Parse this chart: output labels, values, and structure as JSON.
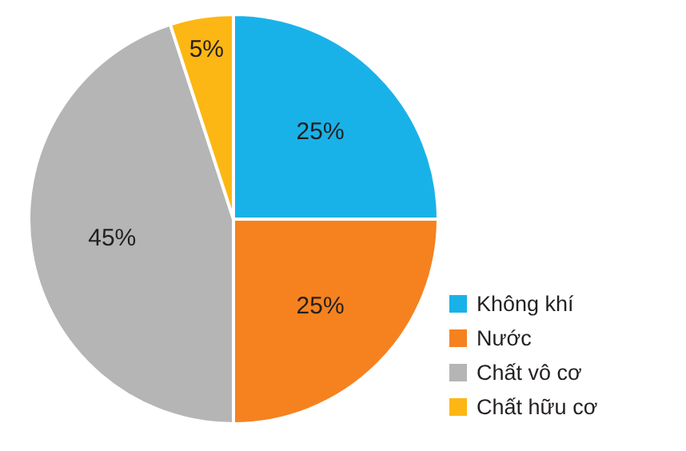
{
  "chart_data": {
    "type": "pie",
    "categories": [
      "Không khí",
      "Nước",
      "Chất vô cơ",
      "Chất hữu cơ"
    ],
    "values": [
      25,
      25,
      45,
      5
    ],
    "colors": [
      "#19b2e8",
      "#f5821f",
      "#b5b5b5",
      "#fdb714"
    ],
    "value_labels": [
      "25%",
      "25%",
      "45%",
      "5%"
    ],
    "legend": "right"
  }
}
